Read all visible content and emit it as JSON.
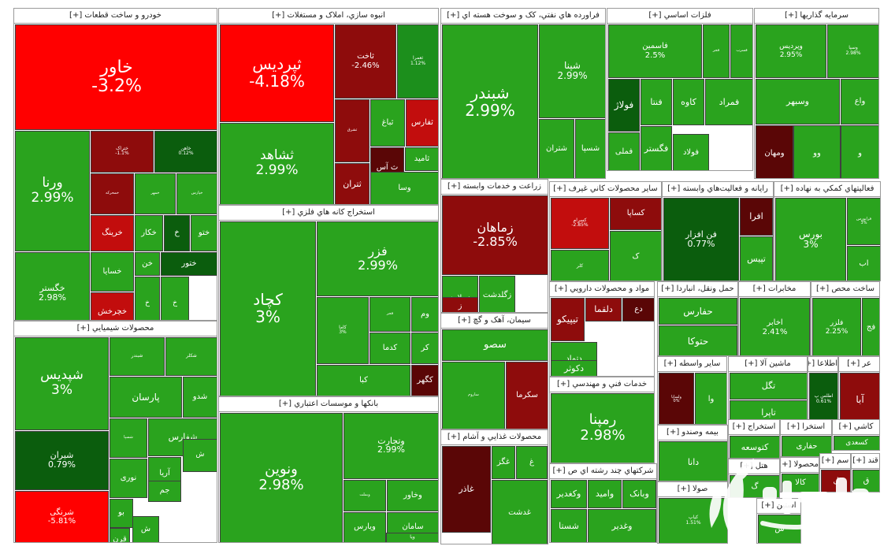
{
  "colors": {
    "up": "#2aa31e",
    "up_dark": "#0b5d0d",
    "up_mid": "#1c8f1c",
    "down": "#ff0000",
    "down_mid": "#c20d0d",
    "down_dark": "#8e0c0c",
    "down_deep": "#5a0606",
    "grid": "#9a9a9a"
  },
  "sectors": [
    {
      "name": "خودرو و ساخت قطعات [+]",
      "tiles": [
        {
          "sym": "خاور",
          "pct": "-3.2%",
          "c": "down"
        },
        {
          "sym": "ورنا",
          "pct": "2.99%",
          "c": "up"
        },
        {
          "sym": "ختراک",
          "pct": "-1.1%",
          "c": "down_dark"
        },
        {
          "sym": "خاهن",
          "pct": "0.12%",
          "c": "up_dark"
        },
        {
          "sym": "خگستر",
          "pct": "2.98%",
          "c": "up"
        },
        {
          "sym": "خمحرکه",
          "pct": "",
          "c": "down_dark"
        },
        {
          "sym": "خمهر",
          "pct": "",
          "c": "up"
        },
        {
          "sym": "خپارس",
          "pct": "",
          "c": "up"
        },
        {
          "sym": "خرینگ",
          "pct": "",
          "c": "down_mid"
        },
        {
          "sym": "خکار",
          "pct": "",
          "c": "up"
        },
        {
          "sym": "خ",
          "pct": "",
          "c": "up_dark"
        },
        {
          "sym": "ختو",
          "pct": "",
          "c": "up"
        },
        {
          "sym": "خسایا",
          "pct": "",
          "c": "up"
        },
        {
          "sym": "خن",
          "pct": "",
          "c": "up"
        },
        {
          "sym": "ختور",
          "pct": "",
          "c": "up_dark"
        },
        {
          "sym": "خچرخش",
          "pct": "",
          "c": "down_mid"
        },
        {
          "sym": "خ",
          "pct": "",
          "c": "up"
        },
        {
          "sym": "خ",
          "pct": "",
          "c": "up"
        }
      ]
    },
    {
      "name": "محصولات شيميايي [+]",
      "tiles": [
        {
          "sym": "شپدیس",
          "pct": "3%",
          "c": "up"
        },
        {
          "sym": "شیران",
          "pct": "0.79%",
          "c": "up_dark"
        },
        {
          "sym": "شرنگی",
          "pct": "-5.81%",
          "c": "down"
        },
        {
          "sym": "شبندر",
          "pct": "",
          "c": "up"
        },
        {
          "sym": "شکلر",
          "pct": "",
          "c": "up"
        },
        {
          "sym": "پارسان",
          "pct": "",
          "c": "up"
        },
        {
          "sym": "شدو",
          "pct": "",
          "c": "up"
        },
        {
          "sym": "شسپا",
          "pct": "",
          "c": "up"
        },
        {
          "sym": "شفارس",
          "pct": "",
          "c": "up"
        },
        {
          "sym": "ش",
          "pct": "",
          "c": "up"
        },
        {
          "sym": "نوری",
          "pct": "",
          "c": "up"
        },
        {
          "sym": "آریا",
          "pct": "",
          "c": "up"
        },
        {
          "sym": "جم",
          "pct": "",
          "c": "up"
        },
        {
          "sym": "قرن",
          "pct": "",
          "c": "up"
        },
        {
          "sym": "بو",
          "pct": "",
          "c": "up"
        },
        {
          "sym": "ش",
          "pct": "",
          "c": "up"
        }
      ]
    },
    {
      "name": "انبوه سازي، املاک و مستغلات [+]",
      "tiles": [
        {
          "sym": "ثپردیس",
          "pct": "-4.18%",
          "c": "down"
        },
        {
          "sym": "ثاخت",
          "pct": "-2.46%",
          "c": "down_dark"
        },
        {
          "sym": "ثعمرا",
          "pct": "1.12%",
          "c": "up_mid"
        },
        {
          "sym": "ثشاهد",
          "pct": "2.99%",
          "c": "up"
        },
        {
          "sym": "ثشرق",
          "pct": "",
          "c": "down_dark"
        },
        {
          "sym": "ثباغ",
          "pct": "",
          "c": "up"
        },
        {
          "sym": "ثفارس",
          "pct": "",
          "c": "down_mid"
        },
        {
          "sym": "ثامید",
          "pct": "",
          "c": "up"
        },
        {
          "sym": "ثتران",
          "pct": "",
          "c": "down_dark"
        },
        {
          "sym": "ث آس",
          "pct": "",
          "c": "down_deep"
        },
        {
          "sym": "وسا",
          "pct": "",
          "c": "up"
        }
      ]
    },
    {
      "name": "استخراج کانه هاي فلزي [+]",
      "tiles": [
        {
          "sym": "کچاد",
          "pct": "3%",
          "c": "up"
        },
        {
          "sym": "فزر",
          "pct": "2.99%",
          "c": "up"
        },
        {
          "sym": "کاما",
          "pct": "3%",
          "c": "up"
        },
        {
          "sym": "فجر",
          "pct": "",
          "c": "up"
        },
        {
          "sym": "وم",
          "pct": "",
          "c": "up"
        },
        {
          "sym": "کدما",
          "pct": "",
          "c": "up"
        },
        {
          "sym": "کر",
          "pct": "",
          "c": "up"
        },
        {
          "sym": "کگهر",
          "pct": "",
          "c": "down_deep"
        },
        {
          "sym": "کبا",
          "pct": "",
          "c": "up"
        }
      ]
    },
    {
      "name": "بانکها و موسسات اعتباري [+]",
      "tiles": [
        {
          "sym": "ونوین",
          "pct": "2.98%",
          "c": "up"
        },
        {
          "sym": "وتجارت",
          "pct": "2.99%",
          "c": "up"
        },
        {
          "sym": "وبملت",
          "pct": "",
          "c": "up"
        },
        {
          "sym": "وخاور",
          "pct": "",
          "c": "up"
        },
        {
          "sym": "سامان",
          "pct": "",
          "c": "up"
        },
        {
          "sym": "ویارس",
          "pct": "",
          "c": "up"
        },
        {
          "sym": "ویا",
          "pct": "",
          "c": "up"
        }
      ]
    },
    {
      "name": "فراورده هاي نفتي، کک و سوخت هسته اي [+]",
      "tiles": [
        {
          "sym": "شبندر",
          "pct": "2.99%",
          "c": "up"
        },
        {
          "sym": "شپنا",
          "pct": "2.99%",
          "c": "up"
        },
        {
          "sym": "شتران",
          "pct": "",
          "c": "up"
        },
        {
          "sym": "شسپا",
          "pct": "",
          "c": "up"
        }
      ]
    },
    {
      "name": "فلزات اساسي [+]",
      "tiles": [
        {
          "sym": "فاسمین",
          "pct": "2.5%",
          "c": "up"
        },
        {
          "sym": "فجر",
          "pct": "",
          "c": "up"
        },
        {
          "sym": "فسرب",
          "pct": "",
          "c": "up"
        },
        {
          "sym": "فولاژ",
          "pct": "",
          "c": "up_dark"
        },
        {
          "sym": "فنتا",
          "pct": "",
          "c": "up"
        },
        {
          "sym": "کاوه",
          "pct": "",
          "c": "up"
        },
        {
          "sym": "فمراد",
          "pct": "",
          "c": "up"
        },
        {
          "sym": "فگستر",
          "pct": "",
          "c": "up"
        },
        {
          "sym": "فملی",
          "pct": "",
          "c": "up"
        },
        {
          "sym": "فولاد",
          "pct": "",
          "c": "up"
        }
      ]
    },
    {
      "name": "سرمايه گذاريها [+]",
      "tiles": [
        {
          "sym": "وپردیس",
          "pct": "2.95%",
          "c": "up"
        },
        {
          "sym": "وسپا",
          "pct": "2.98%",
          "c": "up"
        },
        {
          "sym": "وسبهر",
          "pct": "",
          "c": "up"
        },
        {
          "sym": "واع",
          "pct": "",
          "c": "up"
        },
        {
          "sym": "ومهان",
          "pct": "",
          "c": "down_deep"
        },
        {
          "sym": "وو",
          "pct": "",
          "c": "up"
        },
        {
          "sym": "و",
          "pct": "",
          "c": "up"
        }
      ]
    },
    {
      "name": "زراعت و خدمات وابسته [+]",
      "tiles": [
        {
          "sym": "زماهان",
          "pct": "-2.85%",
          "c": "down_dark"
        },
        {
          "sym": "زملارد",
          "pct": "",
          "c": "up"
        },
        {
          "sym": "زگلدشت",
          "pct": "",
          "c": "up"
        },
        {
          "sym": "ز",
          "pct": "",
          "c": "down_dark"
        }
      ]
    },
    {
      "name": "سيمان، آهک و گچ [+]",
      "tiles": [
        {
          "sym": "سصو",
          "pct": "",
          "c": "up"
        },
        {
          "sym": "ساروم",
          "pct": "",
          "c": "up"
        },
        {
          "sym": "سکرما",
          "pct": "",
          "c": "down_dark"
        }
      ]
    },
    {
      "name": "محصولات غذايي و آشام [+]",
      "tiles": [
        {
          "sym": "غاذر",
          "pct": "",
          "c": "down_deep"
        },
        {
          "sym": "غگز",
          "pct": "",
          "c": "up"
        },
        {
          "sym": "غ",
          "pct": "",
          "c": "up"
        },
        {
          "sym": "غدشت",
          "pct": "",
          "c": "up"
        }
      ]
    },
    {
      "name": "ساير محصولات کاني غيرف [+]",
      "tiles": [
        {
          "sym": "کسرام",
          "pct": "-2.85%",
          "c": "down_mid"
        },
        {
          "sym": "کساپا",
          "pct": "",
          "c": "down_dark"
        },
        {
          "sym": "کلر",
          "pct": "",
          "c": "up"
        },
        {
          "sym": "ک",
          "pct": "",
          "c": "up"
        }
      ]
    },
    {
      "name": "رايانه و فعاليت‌هاي وابسته [+]",
      "tiles": [
        {
          "sym": "فن افزار",
          "pct": "0.77%",
          "c": "up_dark"
        },
        {
          "sym": "افرا",
          "pct": "",
          "c": "down_deep"
        },
        {
          "sym": "تپیس",
          "pct": "",
          "c": "up"
        }
      ]
    },
    {
      "name": "فعاليتهاي کمکي به نهاده [+]",
      "tiles": [
        {
          "sym": "بورس",
          "pct": "3%",
          "c": "up"
        },
        {
          "sym": "فرابورس",
          "pct": "3%",
          "c": "up"
        },
        {
          "sym": "اب",
          "pct": "",
          "c": "up"
        }
      ]
    },
    {
      "name": "مواد و محصولات دارويي [+]",
      "tiles": [
        {
          "sym": "تیپیکو",
          "pct": "",
          "c": "down_dark"
        },
        {
          "sym": "دلقما",
          "pct": "",
          "c": "down_dark"
        },
        {
          "sym": "دع",
          "pct": "",
          "c": "down_deep"
        },
        {
          "sym": "دتماد",
          "pct": "",
          "c": "up"
        },
        {
          "sym": "دکوثر",
          "pct": "",
          "c": "up"
        }
      ]
    },
    {
      "name": "خدمات فني و مهندسي [+]",
      "tiles": [
        {
          "sym": "رمپنا",
          "pct": "2.98%",
          "c": "up"
        }
      ]
    },
    {
      "name": "شرکتهاي چند رشته اي ص [+]",
      "tiles": [
        {
          "sym": "وکغدیر",
          "pct": "",
          "c": "up"
        },
        {
          "sym": "وامید",
          "pct": "",
          "c": "up"
        },
        {
          "sym": "وبانک",
          "pct": "",
          "c": "up"
        },
        {
          "sym": "شستا",
          "pct": "",
          "c": "up"
        },
        {
          "sym": "وغدیر",
          "pct": "",
          "c": "up"
        }
      ]
    },
    {
      "name": "حمل ونقل، انباردا [+]",
      "tiles": [
        {
          "sym": "حفارس",
          "pct": "",
          "c": "up"
        },
        {
          "sym": "حتوکا",
          "pct": "",
          "c": "up"
        }
      ]
    },
    {
      "name": "مخابرات [+]",
      "tiles": [
        {
          "sym": "اخابر",
          "pct": "2.41%",
          "c": "up"
        }
      ]
    },
    {
      "name": "ساخت محص [+]",
      "tiles": [
        {
          "sym": "فلزر",
          "pct": "2.25%",
          "c": "up"
        },
        {
          "sym": "فج",
          "pct": "",
          "c": "up"
        }
      ]
    },
    {
      "name": "ساير واسطه [+]",
      "tiles": [
        {
          "sym": "ولساپا",
          "pct": "0%",
          "c": "down_deep"
        },
        {
          "sym": "وا",
          "pct": "",
          "c": "up"
        }
      ]
    },
    {
      "name": "ماشين آلا [+]",
      "tiles": [
        {
          "sym": "تگل",
          "pct": "",
          "c": "up"
        },
        {
          "sym": "تاپرا",
          "pct": "",
          "c": "up"
        }
      ]
    },
    {
      "name": "اطلاعا [+]",
      "tiles": [
        {
          "sym": "اطلس پ",
          "pct": "0.61%",
          "c": "up_dark"
        }
      ]
    },
    {
      "name": "عر [+]",
      "tiles": [
        {
          "sym": "آبا",
          "pct": "",
          "c": "down_dark"
        }
      ]
    },
    {
      "name": "بيمه وصندو [+]",
      "tiles": [
        {
          "sym": "دانا",
          "pct": "",
          "c": "up"
        },
        {
          "sym": "بیا",
          "pct": "",
          "c": "up"
        }
      ]
    },
    {
      "name": "استخراج [+]",
      "tiles": [
        {
          "sym": "کتوسعه",
          "pct": "",
          "c": "up"
        }
      ]
    },
    {
      "name": "استخرا [+]",
      "tiles": [
        {
          "sym": "حفاری",
          "pct": "",
          "c": "up"
        }
      ]
    },
    {
      "name": "کاشي [+]",
      "tiles": [
        {
          "sym": "کسعدی",
          "pct": "",
          "c": "up"
        }
      ]
    },
    {
      "name": "هتل [+]",
      "tiles": [
        {
          "sym": "گ",
          "pct": "",
          "c": "up"
        }
      ]
    },
    {
      "name": "سم [+]",
      "tiles": [
        {
          "sym": "ل",
          "pct": "",
          "c": "down_dark"
        }
      ]
    },
    {
      "name": "قند [+]",
      "tiles": [
        {
          "sym": "ق",
          "pct": "",
          "c": "up"
        }
      ]
    },
    {
      "name": "محصولا [+]",
      "tiles": [
        {
          "sym": "کالا",
          "pct": "",
          "c": "up"
        }
      ]
    },
    {
      "name": "استين [+]",
      "tiles": [
        {
          "sym": "س",
          "pct": "",
          "c": "up"
        }
      ]
    },
    {
      "name": "صولا [+]",
      "tiles": [
        {
          "sym": "کیاپ",
          "pct": "1.51%",
          "c": "up"
        }
      ]
    }
  ]
}
